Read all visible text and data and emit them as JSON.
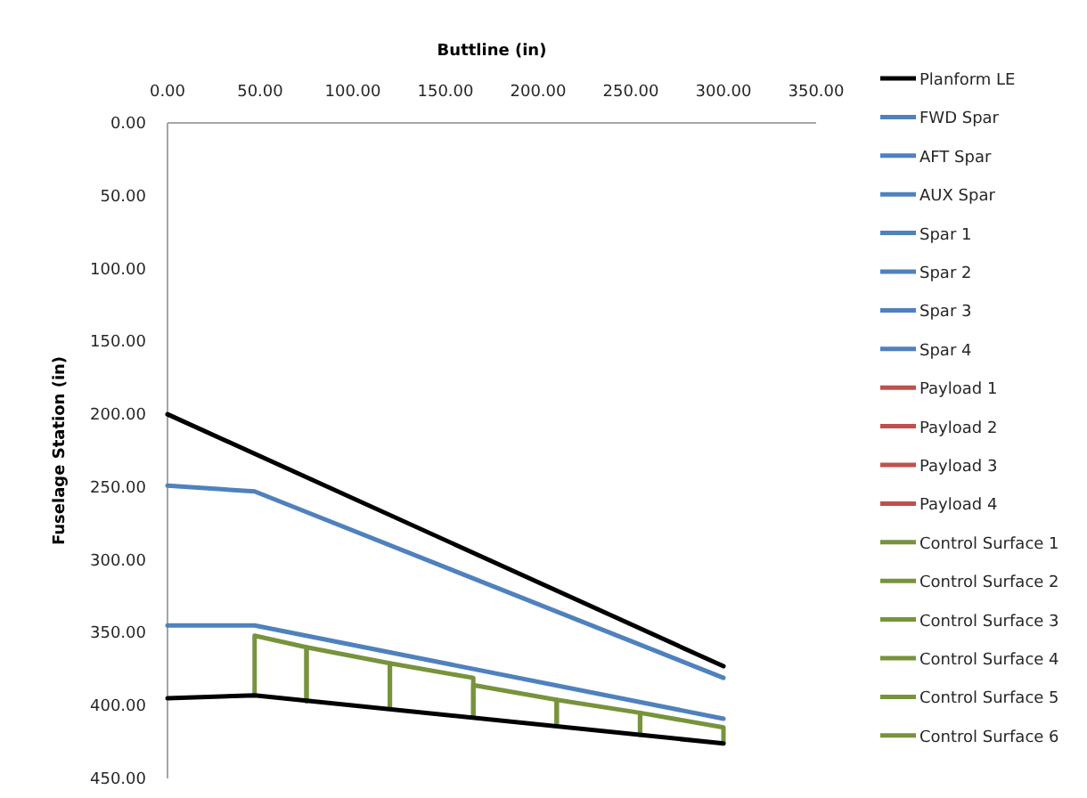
{
  "chart_data": {
    "type": "line",
    "xlabel": "Buttline (in)",
    "ylabel": "Fuselage Station  (in)",
    "xlim": [
      0,
      350
    ],
    "xticks": [
      {
        "value": 0,
        "label": "0.00"
      },
      {
        "value": 50,
        "label": "50.00"
      },
      {
        "value": 100,
        "label": "100.00"
      },
      {
        "value": 150,
        "label": "150.00"
      },
      {
        "value": 200,
        "label": "200.00"
      },
      {
        "value": 250,
        "label": "250.00"
      },
      {
        "value": 300,
        "label": "300.00"
      },
      {
        "value": 350,
        "label": "350.00"
      }
    ],
    "ylim": [
      450,
      0
    ],
    "yticks": [
      {
        "value": 0,
        "label": "0.00"
      },
      {
        "value": 50,
        "label": "50.00"
      },
      {
        "value": 100,
        "label": "100.00"
      },
      {
        "value": 150,
        "label": "150.00"
      },
      {
        "value": 200,
        "label": "200.00"
      },
      {
        "value": 250,
        "label": "250.00"
      },
      {
        "value": 300,
        "label": "300.00"
      },
      {
        "value": 350,
        "label": "350.00"
      },
      {
        "value": 400,
        "label": "400.00"
      },
      {
        "value": 450,
        "label": "450.00"
      }
    ],
    "grid": false,
    "legend": "right",
    "marker": "none",
    "line_style": "solid",
    "series": [
      {
        "name": "Planform LE",
        "color": "#000000",
        "x": [
          0,
          300
        ],
        "values": [
          200,
          373
        ]
      },
      {
        "name": "FWD Spar",
        "color": "#4f81bd",
        "x": [
          0,
          47,
          300
        ],
        "values": [
          249,
          253,
          381
        ]
      },
      {
        "name": "AFT Spar",
        "color": "#4f81bd",
        "x": [
          0,
          47,
          300
        ],
        "values": [
          345,
          345,
          409
        ]
      },
      {
        "name": "AUX Spar",
        "color": "#4f81bd"
      },
      {
        "name": "Spar 1",
        "color": "#4f81bd"
      },
      {
        "name": "Spar 2",
        "color": "#4f81bd"
      },
      {
        "name": "Spar 3",
        "color": "#4f81bd"
      },
      {
        "name": "Spar 4",
        "color": "#4f81bd"
      },
      {
        "name": "Payload 1",
        "color": "#c0504d"
      },
      {
        "name": "Payload 2",
        "color": "#c0504d"
      },
      {
        "name": "Payload 3",
        "color": "#c0504d"
      },
      {
        "name": "Payload 4",
        "color": "#c0504d"
      },
      {
        "name": "Control Surface 1",
        "color": "#77933c",
        "x": [
          47,
          47,
          75,
          75
        ],
        "values": [
          393,
          352,
          360,
          397
        ]
      },
      {
        "name": "Control Surface 2",
        "color": "#77933c",
        "x": [
          75,
          75,
          120,
          120
        ],
        "values": [
          397,
          360,
          371,
          402
        ]
      },
      {
        "name": "Control Surface 3",
        "color": "#77933c",
        "x": [
          120,
          120,
          165,
          165
        ],
        "values": [
          402,
          371,
          381,
          408
        ]
      },
      {
        "name": "Control Surface 4",
        "color": "#77933c",
        "x": [
          165,
          165,
          210,
          210
        ],
        "values": [
          408,
          386,
          396,
          414
        ]
      },
      {
        "name": "Control Surface 5",
        "color": "#77933c",
        "x": [
          210,
          210,
          255,
          255
        ],
        "values": [
          414,
          396,
          405,
          420
        ]
      },
      {
        "name": "Control Surface 6",
        "color": "#77933c",
        "x": [
          255,
          255,
          300,
          300
        ],
        "values": [
          420,
          405,
          415,
          426
        ]
      },
      {
        "color": "#000000",
        "x": [
          0,
          47,
          300
        ],
        "values": [
          395,
          393,
          426
        ]
      }
    ]
  }
}
